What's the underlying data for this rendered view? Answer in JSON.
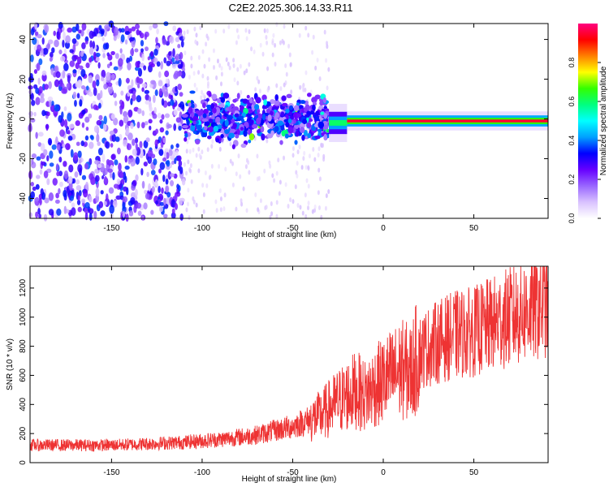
{
  "title": "C2E2.2025.306.14.33.R11",
  "chart_data": [
    {
      "type": "heatmap",
      "xlabel": "Height of straight line (km)",
      "ylabel": "Frequency (Hz)",
      "xlim": [
        -195,
        91
      ],
      "ylim": [
        -50,
        48
      ],
      "x_ticks": [
        -150,
        -100,
        -50,
        0,
        50
      ],
      "y_ticks": [
        -40,
        -20,
        0,
        20,
        40
      ],
      "colorbar": {
        "label": "Normalized spectral amplitude",
        "range": [
          0,
          1
        ],
        "ticks": [
          0.0,
          0.2,
          0.4,
          0.6,
          0.8
        ],
        "colors": [
          "#ffffff",
          "#d9c2ff",
          "#9966ff",
          "#6600ff",
          "#0000ff",
          "#00a0ff",
          "#00ffff",
          "#00ff80",
          "#33ff00",
          "#ffff00",
          "#ff8000",
          "#ff0000",
          "#ff0080"
        ]
      },
      "bands": [
        {
          "x": [
            -195,
            -110
          ],
          "freq_spread": 48,
          "amplitude": 0.15,
          "note": "broadband noise"
        },
        {
          "x": [
            -110,
            -30
          ],
          "freq_center": 0,
          "freq_spread": 10,
          "amplitude": 0.35
        },
        {
          "x": [
            -30,
            -20
          ],
          "freq_center": -2,
          "freq_spread": 4,
          "amplitude": 0.6
        },
        {
          "x": [
            -20,
            91
          ],
          "freq_center": -1,
          "freq_spread": 2,
          "amplitude": 0.95
        }
      ]
    },
    {
      "type": "line",
      "xlabel": "Height of straight line (km)",
      "ylabel": "SNR (10 * v/v)",
      "xlim": [
        -195,
        91
      ],
      "ylim": [
        0,
        1350
      ],
      "x_ticks": [
        -150,
        -100,
        -50,
        0,
        50
      ],
      "y_ticks": [
        0,
        200,
        400,
        600,
        800,
        1000,
        1200
      ],
      "color": "#ee3333",
      "series": [
        {
          "x": [
            -195,
            -150,
            -110,
            -90,
            -70,
            -50,
            -35,
            -25,
            -15,
            -10,
            -5,
            0,
            5,
            10,
            15,
            20,
            30,
            40,
            50,
            60,
            70,
            80,
            91
          ],
          "values": [
            120,
            120,
            140,
            160,
            190,
            250,
            320,
            420,
            500,
            460,
            520,
            560,
            600,
            640,
            620,
            760,
            830,
            880,
            900,
            950,
            1000,
            1050,
            1100
          ]
        }
      ]
    }
  ]
}
